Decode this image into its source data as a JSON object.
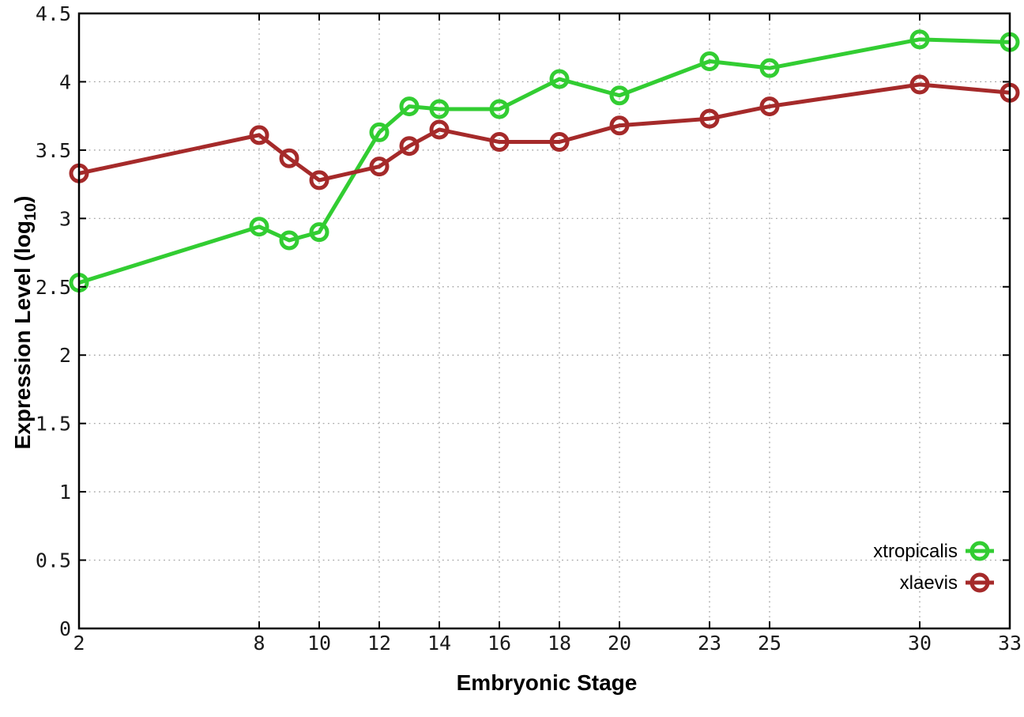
{
  "chart_data": {
    "type": "line",
    "title": "",
    "xlabel": "Embryonic Stage",
    "ylabel": "Expression Level (log10)",
    "ylabel_parts": {
      "main": "Expression Level (log",
      "sub": "10",
      "close": ")"
    },
    "x": [
      2,
      8,
      9,
      10,
      12,
      13,
      14,
      16,
      18,
      20,
      23,
      25,
      30,
      33
    ],
    "series": [
      {
        "name": "xtropicalis",
        "color": "#32cd32",
        "values": [
          2.53,
          2.94,
          2.84,
          2.9,
          3.63,
          3.82,
          3.8,
          3.8,
          4.02,
          3.9,
          4.15,
          4.1,
          4.31,
          4.29
        ]
      },
      {
        "name": "xlaevis",
        "color": "#a52a2a",
        "values": [
          3.33,
          3.61,
          3.44,
          3.28,
          3.38,
          3.53,
          3.65,
          3.56,
          3.56,
          3.68,
          3.73,
          3.82,
          3.98,
          3.92
        ]
      }
    ],
    "x_ticks": [
      2,
      8,
      10,
      12,
      14,
      16,
      18,
      20,
      23,
      25,
      30,
      33
    ],
    "y_ticks": [
      0,
      0.5,
      1,
      1.5,
      2,
      2.5,
      3,
      3.5,
      4,
      4.5
    ],
    "xlim": [
      2,
      33
    ],
    "ylim": [
      0,
      4.5
    ],
    "grid": true,
    "legend_position": "bottom-right",
    "colors": {
      "background": "#ffffff",
      "axis": "#000000",
      "grid": "#9e9e9e",
      "tick_text": "#1a1a1a"
    }
  }
}
